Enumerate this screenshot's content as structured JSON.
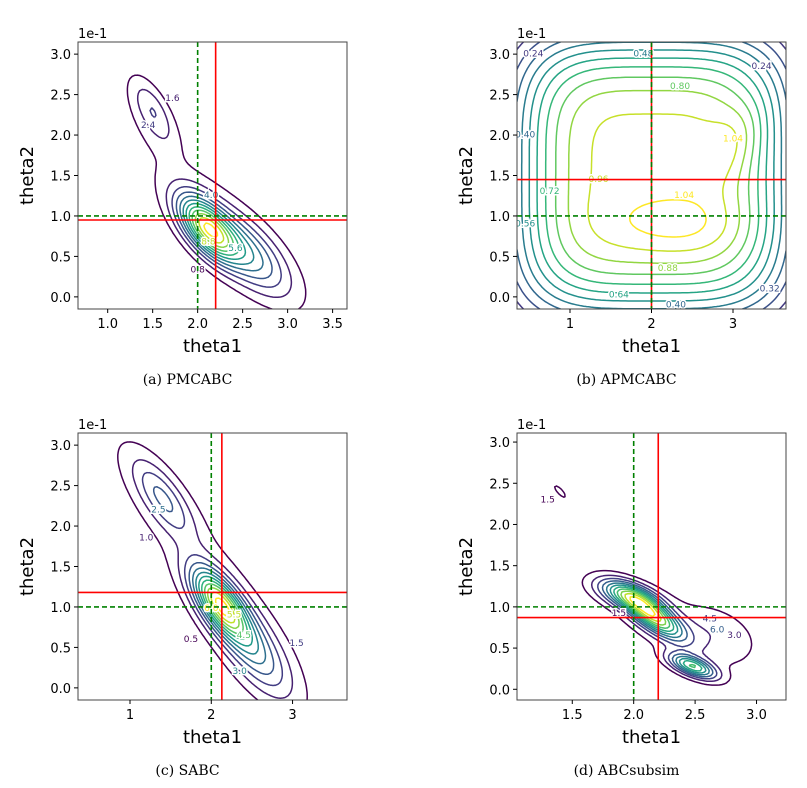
{
  "chart_data": [
    {
      "type": "contour",
      "caption": "(a) PMCABC",
      "xlabel": "theta1",
      "ylabel": "theta2",
      "y_offset_text": "1e-1",
      "xlim": [
        0.67,
        3.66
      ],
      "ylim": [
        -0.15,
        3.15
      ],
      "xticks": [
        "1.0",
        "1.5",
        "2.0",
        "2.5",
        "3.0",
        "3.5"
      ],
      "yticks": [
        "0.0",
        "0.5",
        "1.0",
        "1.5",
        "2.0",
        "2.5",
        "3.0"
      ],
      "levels": [
        0.8,
        1.6,
        2.4,
        3.2,
        4.0,
        4.8,
        5.6,
        6.4,
        7.2,
        8.0,
        8.8,
        9.6
      ],
      "peak_density": 10.0,
      "density_components": [
        {
          "mu": [
            2.1,
            0.85
          ],
          "angle": -55,
          "sx": 0.32,
          "sy": 0.15,
          "p": 2,
          "w": 1.0
        },
        {
          "mu": [
            2.55,
            0.55
          ],
          "angle": -50,
          "sx": 0.45,
          "sy": 0.2,
          "p": 2,
          "w": 0.5
        },
        {
          "mu": [
            1.5,
            2.3
          ],
          "angle": -65,
          "sx": 0.32,
          "sy": 0.12,
          "p": 2,
          "w": 0.28
        },
        {
          "mu": [
            2.0,
            1.2
          ],
          "angle": -50,
          "sx": 1.25,
          "sy": 0.3,
          "p": 2,
          "w": 0.1
        }
      ],
      "contour_labels": [
        "2.4",
        "1.6",
        "4.0",
        "5.6",
        "8.8",
        "0.8"
      ],
      "green_dashed_lines": {
        "theta1": 2.0,
        "theta2": 1.0
      },
      "red_solid_lines": {
        "theta1": 2.2,
        "theta2": 0.95
      },
      "colors": {
        "green": "#008000",
        "red": "#ff0000"
      }
    },
    {
      "type": "contour",
      "caption": "(b) APMCABC",
      "xlabel": "theta1",
      "ylabel": "theta2",
      "y_offset_text": "1e-1",
      "xlim": [
        0.35,
        3.65
      ],
      "ylim": [
        -0.15,
        3.15
      ],
      "xticks": [
        "1",
        "2",
        "3"
      ],
      "yticks": [
        "0.0",
        "0.5",
        "1.0",
        "1.5",
        "2.0",
        "2.5",
        "3.0"
      ],
      "levels": [
        0.08,
        0.16,
        0.24,
        0.32,
        0.4,
        0.48,
        0.56,
        0.64,
        0.72,
        0.8,
        0.88,
        0.96,
        1.04
      ],
      "peak_density": 1.08,
      "density_components": [
        {
          "mu": [
            2.0,
            1.5
          ],
          "angle": 0,
          "sx": 1.45,
          "sy": 1.5,
          "p": 4,
          "w": 1.0
        },
        {
          "mu": [
            2.3,
            0.9
          ],
          "angle": 0,
          "sx": 0.55,
          "sy": 0.25,
          "p": 2,
          "w": 0.1
        },
        {
          "mu": [
            3.0,
            1.9
          ],
          "angle": 60,
          "sx": 0.35,
          "sy": 0.2,
          "p": 2,
          "w": 0.1
        }
      ],
      "contour_labels": [
        "0.24",
        "0.48",
        "0.80",
        "1.04",
        "0.40",
        "0.72",
        "0.96",
        "1.04",
        "0.56",
        "0.88",
        "0.64",
        "0.40",
        "0.32",
        "0.24"
      ],
      "green_dashed_lines": {
        "theta1": 2.0,
        "theta2": 1.0
      },
      "red_solid_lines": {
        "theta1": 2.0,
        "theta2": 1.45
      },
      "colors": {
        "green": "#008000",
        "red": "#ff0000"
      }
    },
    {
      "type": "contour",
      "caption": "(c) SABC",
      "xlabel": "theta1",
      "ylabel": "theta2",
      "y_offset_text": "1e-1",
      "xlim": [
        0.36,
        3.67
      ],
      "ylim": [
        -0.15,
        3.15
      ],
      "xticks": [
        "1",
        "2",
        "3"
      ],
      "yticks": [
        "0.0",
        "0.5",
        "1.0",
        "1.5",
        "2.0",
        "2.5",
        "3.0"
      ],
      "levels": [
        0.5,
        1.0,
        1.5,
        2.0,
        2.5,
        3.0,
        3.5,
        4.0,
        4.5,
        5.0,
        5.5,
        6.0
      ],
      "peak_density": 6.3,
      "density_components": [
        {
          "mu": [
            2.1,
            1.05
          ],
          "angle": -55,
          "sx": 0.35,
          "sy": 0.15,
          "p": 2,
          "w": 1.0
        },
        {
          "mu": [
            2.5,
            0.5
          ],
          "angle": -55,
          "sx": 0.5,
          "sy": 0.2,
          "p": 2,
          "w": 0.45
        },
        {
          "mu": [
            1.4,
            2.35
          ],
          "angle": -55,
          "sx": 0.4,
          "sy": 0.15,
          "p": 2,
          "w": 0.35
        },
        {
          "mu": [
            1.9,
            1.5
          ],
          "angle": -55,
          "sx": 1.6,
          "sy": 0.35,
          "p": 2,
          "w": 0.12
        },
        {
          "mu": [
            2.6,
            1.9
          ],
          "angle": 0,
          "sx": 0.2,
          "sy": 0.2,
          "p": 2,
          "w": 0.05
        }
      ],
      "contour_labels": [
        "2.5",
        "1.0",
        "0.5",
        "4.5",
        "5.5",
        "6.0",
        "3.0",
        "1.5"
      ],
      "green_dashed_lines": {
        "theta1": 2.0,
        "theta2": 1.0
      },
      "red_solid_lines": {
        "theta1": 2.13,
        "theta2": 1.18
      },
      "colors": {
        "green": "#008000",
        "red": "#ff0000"
      }
    },
    {
      "type": "contour",
      "caption": "(d) ABCsubsim",
      "xlabel": "theta1",
      "ylabel": "theta2",
      "y_offset_text": "1e-1",
      "xlim": [
        1.05,
        3.24
      ],
      "ylim": [
        -0.13,
        3.11
      ],
      "xticks": [
        "1.5",
        "2.0",
        "2.5",
        "3.0"
      ],
      "yticks": [
        "0.0",
        "0.5",
        "1.0",
        "1.5",
        "2.0",
        "2.5",
        "3.0"
      ],
      "levels": [
        1.5,
        3.0,
        4.5,
        6.0,
        7.5,
        9.0,
        10.5,
        12.0,
        13.5,
        15.0,
        16.5
      ],
      "peak_density": 18.0,
      "density_components": [
        {
          "mu": [
            2.15,
            0.9
          ],
          "angle": -50,
          "sx": 0.25,
          "sy": 0.09,
          "p": 2,
          "w": 1.0
        },
        {
          "mu": [
            1.95,
            1.15
          ],
          "angle": -30,
          "sx": 0.2,
          "sy": 0.1,
          "p": 2,
          "w": 0.6
        },
        {
          "mu": [
            2.48,
            0.28
          ],
          "angle": -35,
          "sx": 0.15,
          "sy": 0.07,
          "p": 2,
          "w": 0.8
        },
        {
          "mu": [
            2.7,
            0.7
          ],
          "angle": -50,
          "sx": 0.3,
          "sy": 0.2,
          "p": 2,
          "w": 0.15
        },
        {
          "mu": [
            1.4,
            2.4
          ],
          "angle": -60,
          "sx": 0.17,
          "sy": 0.05,
          "p": 2,
          "w": 0.12
        },
        {
          "mu": [
            1.48,
            2.9
          ],
          "angle": -60,
          "sx": 0.06,
          "sy": 0.04,
          "p": 2,
          "w": 0.1
        },
        {
          "mu": [
            2.3,
            0.7
          ],
          "angle": -45,
          "sx": 0.6,
          "sy": 0.25,
          "p": 2,
          "w": 0.1
        }
      ],
      "contour_labels": [
        "1.5",
        "4.5",
        "6.0",
        "3.0",
        "1.5"
      ],
      "green_dashed_lines": {
        "theta1": 2.0,
        "theta2": 1.0
      },
      "red_solid_lines": {
        "theta1": 2.2,
        "theta2": 0.87
      },
      "colors": {
        "green": "#008000",
        "red": "#ff0000"
      }
    }
  ]
}
